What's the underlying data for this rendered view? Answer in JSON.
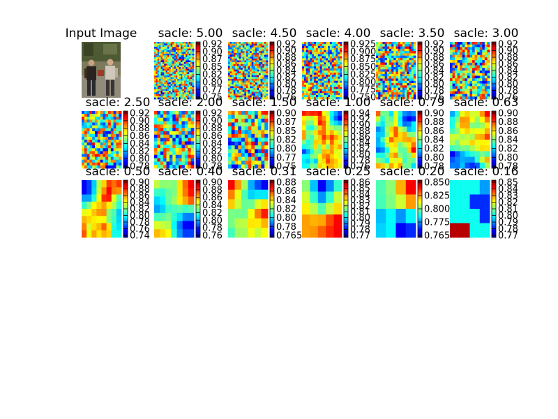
{
  "figure": {
    "title": "",
    "input_panel_title": "Input Image"
  },
  "colormap": "jet",
  "chart_data": [
    {
      "type": "heatmap",
      "title": "sacle: 5.00",
      "scale": 5.0,
      "grid": [
        24,
        34
      ],
      "seed": 11,
      "smooth": 0,
      "clim": [
        0.74,
        0.93
      ],
      "colorbar_ticks": [
        "0.92",
        "0.90",
        "0.87",
        "0.85",
        "0.82",
        "0.80",
        "0.77",
        "0.75"
      ]
    },
    {
      "type": "heatmap",
      "title": "sacle: 4.50",
      "scale": 4.5,
      "grid": [
        22,
        31
      ],
      "seed": 12,
      "smooth": 0,
      "clim": [
        0.75,
        0.93
      ],
      "colorbar_ticks": [
        "0.92",
        "0.90",
        "0.88",
        "0.86",
        "0.84",
        "0.82",
        "0.80",
        "0.78",
        "0.76"
      ]
    },
    {
      "type": "heatmap",
      "title": "sacle: 4.00",
      "scale": 4.0,
      "grid": [
        20,
        28
      ],
      "seed": 13,
      "smooth": 0,
      "clim": [
        0.735,
        0.93
      ],
      "colorbar_ticks": [
        "0.925",
        "0.900",
        "0.875",
        "0.850",
        "0.825",
        "0.800",
        "0.775",
        "0.750"
      ]
    },
    {
      "type": "heatmap",
      "title": "sacle: 3.50",
      "scale": 3.5,
      "grid": [
        18,
        25
      ],
      "seed": 14,
      "smooth": 0,
      "clim": [
        0.75,
        0.93
      ],
      "colorbar_ticks": [
        "0.92",
        "0.90",
        "0.88",
        "0.86",
        "0.84",
        "0.82",
        "0.80",
        "0.78",
        "0.76"
      ]
    },
    {
      "type": "heatmap",
      "title": "sacle: 3.00",
      "scale": 3.0,
      "grid": [
        16,
        22
      ],
      "seed": 15,
      "smooth": 0,
      "clim": [
        0.75,
        0.93
      ],
      "colorbar_ticks": [
        "0.92",
        "0.90",
        "0.88",
        "0.86",
        "0.84",
        "0.82",
        "0.80",
        "0.78",
        "0.76"
      ]
    },
    {
      "type": "heatmap",
      "title": "sacle: 2.50",
      "scale": 2.5,
      "grid": [
        15,
        20
      ],
      "seed": 16,
      "smooth": 0,
      "clim": [
        0.77,
        0.93
      ],
      "colorbar_ticks": [
        "0.92",
        "0.90",
        "0.88",
        "0.86",
        "0.84",
        "0.82",
        "0.80",
        "0.78"
      ]
    },
    {
      "type": "heatmap",
      "title": "sacle: 2.00",
      "scale": 2.0,
      "grid": [
        13,
        17
      ],
      "seed": 17,
      "smooth": 0,
      "clim": [
        0.77,
        0.93
      ],
      "colorbar_ticks": [
        "0.92",
        "0.90",
        "0.88",
        "0.86",
        "0.84",
        "0.82",
        "0.80",
        "0.78"
      ]
    },
    {
      "type": "heatmap",
      "title": "sacle: 1.50",
      "scale": 1.5,
      "grid": [
        12,
        15
      ],
      "seed": 18,
      "smooth": 0,
      "clim": [
        0.74,
        0.91
      ],
      "colorbar_ticks": [
        "0.90",
        "0.87",
        "0.85",
        "0.82",
        "0.80",
        "0.77",
        "0.75"
      ]
    },
    {
      "type": "heatmap",
      "title": "sacle: 1.00",
      "scale": 1.0,
      "grid": [
        10,
        12
      ],
      "seed": 19,
      "smooth": 1,
      "clim": [
        0.75,
        0.95
      ],
      "colorbar_ticks": [
        "0.94",
        "0.92",
        "0.90",
        "0.88",
        "0.86",
        "0.84",
        "0.82",
        "0.80",
        "0.78",
        "0.76"
      ]
    },
    {
      "type": "heatmap",
      "title": "sacle: 0.79",
      "scale": 0.79,
      "grid": [
        9,
        11
      ],
      "seed": 20,
      "smooth": 1,
      "clim": [
        0.77,
        0.91
      ],
      "colorbar_ticks": [
        "0.90",
        "0.88",
        "0.86",
        "0.84",
        "0.82",
        "0.80",
        "0.78"
      ]
    },
    {
      "type": "heatmap",
      "title": "sacle: 0.63",
      "scale": 0.63,
      "grid": [
        8,
        10
      ],
      "seed": 21,
      "smooth": 1,
      "clim": [
        0.77,
        0.91
      ],
      "colorbar_ticks": [
        "0.90",
        "0.88",
        "0.86",
        "0.84",
        "0.82",
        "0.80",
        "0.78"
      ]
    },
    {
      "type": "heatmap",
      "title": "sacle: 0.50",
      "scale": 0.5,
      "grid": [
        8,
        8
      ],
      "seed": 22,
      "smooth": 1,
      "clim": [
        0.73,
        0.91
      ],
      "colorbar_ticks": [
        "0.90",
        "0.88",
        "0.86",
        "0.84",
        "0.82",
        "0.80",
        "0.78",
        "0.76",
        "0.74"
      ]
    },
    {
      "type": "heatmap",
      "title": "sacle: 0.40",
      "scale": 0.4,
      "grid": [
        7,
        7
      ],
      "seed": 23,
      "smooth": 2,
      "clim": [
        0.75,
        0.9
      ],
      "colorbar_ticks": [
        "0.90",
        "0.88",
        "0.86",
        "0.84",
        "0.82",
        "0.80",
        "0.78",
        "0.76"
      ]
    },
    {
      "type": "heatmap",
      "title": "sacle: 0.31",
      "scale": 0.31,
      "grid": [
        6,
        6
      ],
      "seed": 24,
      "smooth": 2,
      "clim": [
        0.765,
        0.89
      ],
      "colorbar_ticks": [
        "0.88",
        "0.86",
        "0.84",
        "0.82",
        "0.80",
        "0.78",
        "0.765"
      ]
    },
    {
      "type": "heatmap",
      "title": "sacle: 0.25",
      "scale": 0.25,
      "grid": [
        5,
        5
      ],
      "seed": 25,
      "smooth": 2,
      "clim": [
        0.765,
        0.865
      ],
      "colorbar_ticks": [
        "0.86",
        "0.85",
        "0.84",
        "0.83",
        "0.82",
        "0.81",
        "0.80",
        "0.79",
        "0.78",
        "0.77"
      ]
    },
    {
      "type": "heatmap",
      "title": "sacle: 0.20",
      "scale": 0.2,
      "grid": [
        4,
        4
      ],
      "seed": 26,
      "smooth": 2,
      "clim": [
        0.76,
        0.86
      ],
      "colorbar_ticks": [
        "0.850",
        "0.825",
        "0.800",
        "0.775",
        "0.765"
      ]
    },
    {
      "type": "heatmap",
      "title": "sacle: 0.16",
      "scale": 0.16,
      "grid": [
        4,
        4
      ],
      "seed": 27,
      "smooth": 0,
      "clim": [
        0.765,
        0.855
      ],
      "colorbar_ticks": [
        "0.85",
        "0.84",
        "0.83",
        "0.82",
        "0.81",
        "0.80",
        "0.79",
        "0.78",
        "0.77"
      ],
      "values": [
        [
          0.8,
          0.8,
          0.8,
          0.79
        ],
        [
          0.8,
          0.8,
          0.78,
          0.78
        ],
        [
          0.8,
          0.8,
          0.8,
          0.78
        ],
        [
          0.85,
          0.85,
          0.8,
          0.8
        ]
      ]
    }
  ]
}
